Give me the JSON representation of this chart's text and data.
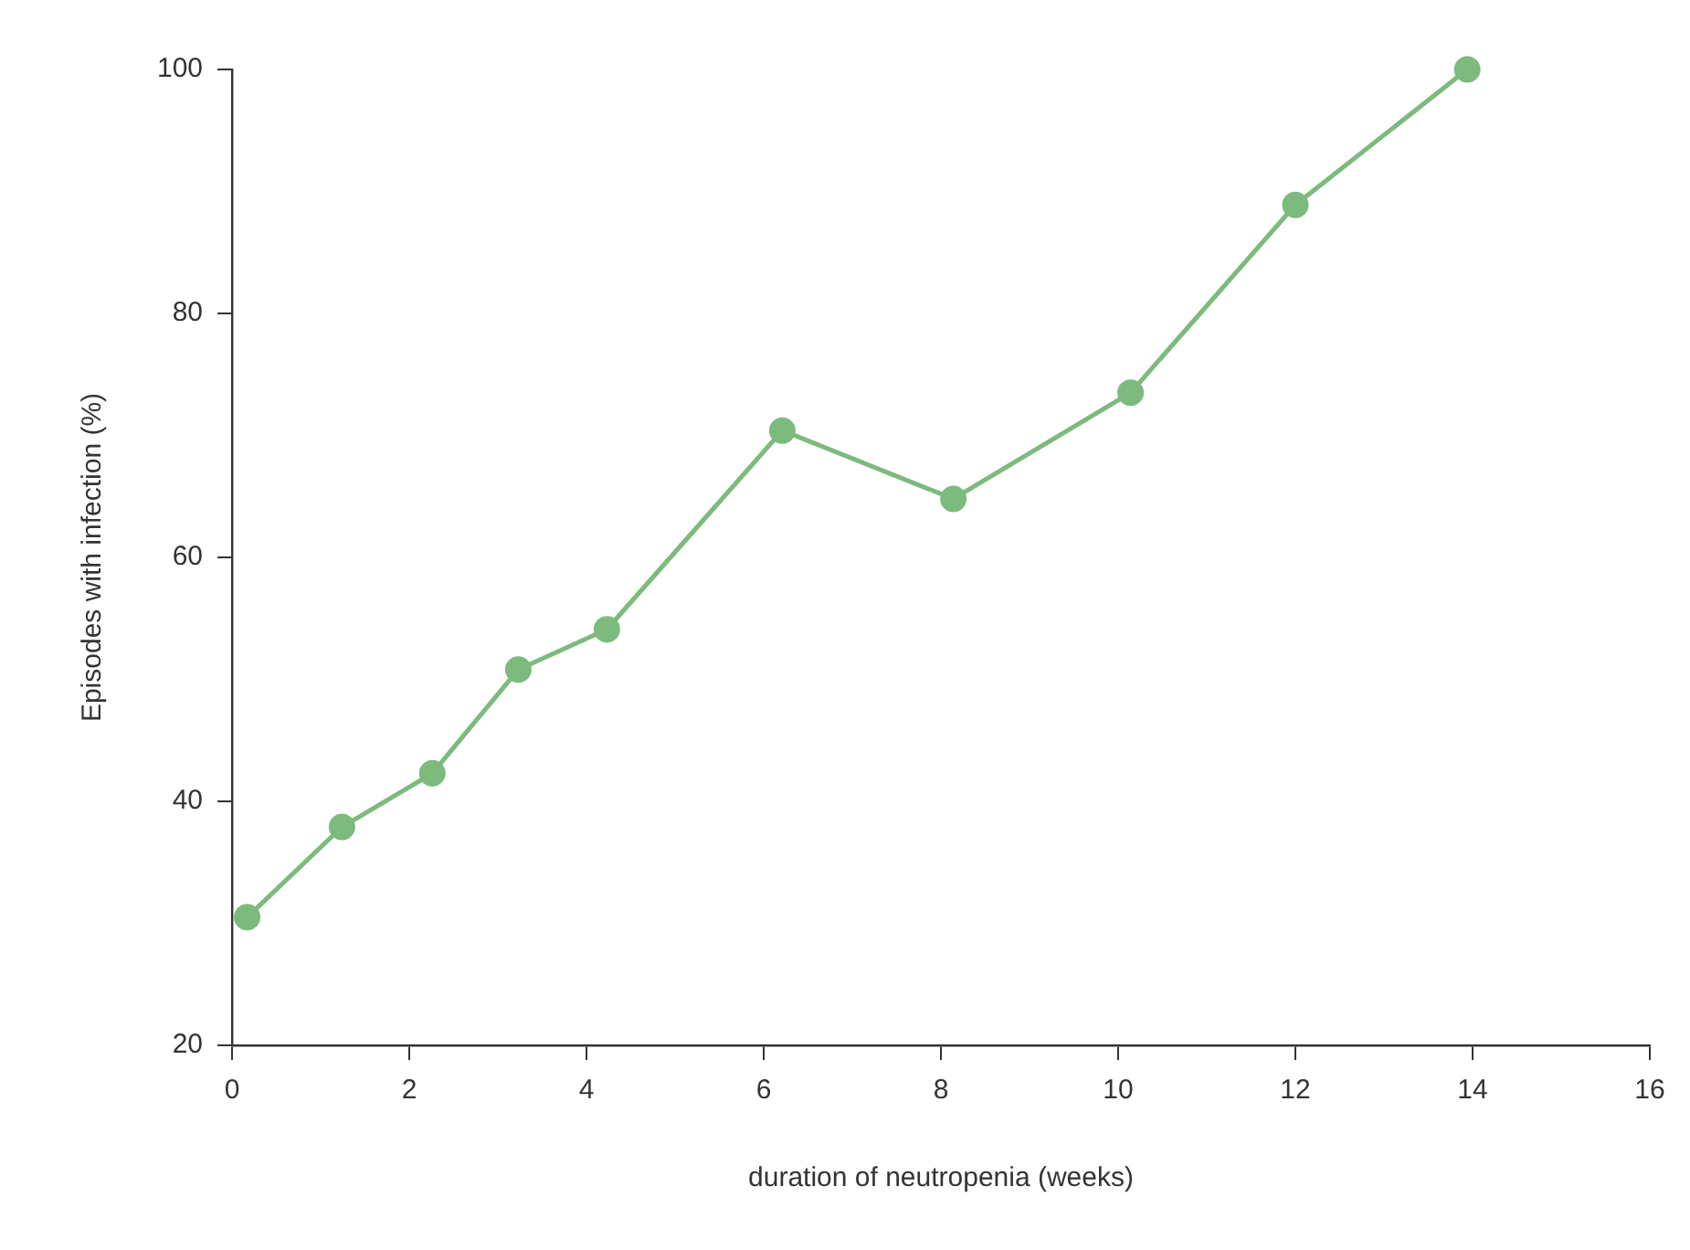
{
  "chart_data": {
    "type": "line",
    "xlabel": "duration of neutropenia (weeks)",
    "ylabel": "Episodes with infection (%)",
    "x": [
      0.17,
      1.24,
      2.26,
      3.23,
      4.23,
      6.21,
      8.14,
      10.14,
      12.0,
      13.94
    ],
    "series": [
      {
        "color": "#7dba7d",
        "values": [
          30.5,
          37.9,
          42.3,
          50.8,
          54.1,
          70.4,
          64.8,
          73.5,
          88.9,
          100
        ]
      }
    ],
    "xlim": [
      0,
      16
    ],
    "xticks": [
      0,
      2,
      4,
      6,
      8,
      10,
      12,
      14,
      16
    ],
    "ylim": [
      20,
      100
    ],
    "yticks": [
      20,
      40,
      60,
      80,
      100
    ],
    "grid": false,
    "legend": false,
    "marker": "circle",
    "line_style": "solid"
  }
}
